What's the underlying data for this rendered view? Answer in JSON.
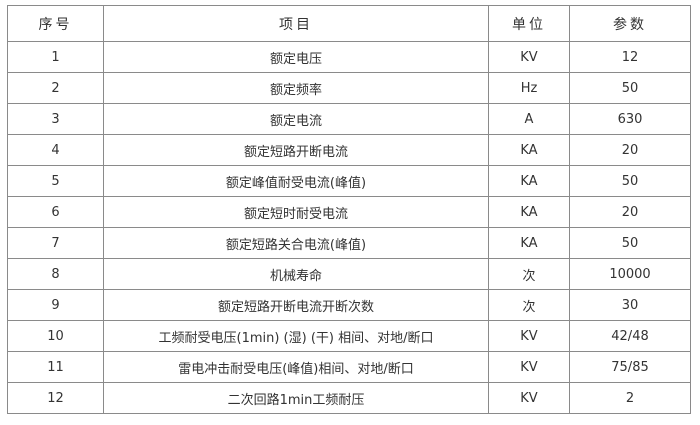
{
  "headers": [
    "序号",
    "项目",
    "单位",
    "参数"
  ],
  "rows": [
    [
      "1",
      "额定电压",
      "KV",
      "12"
    ],
    [
      "2",
      "额定频率",
      "Hz",
      "50"
    ],
    [
      "3",
      "额定电流",
      "A",
      "630"
    ],
    [
      "4",
      "额定短路开断电流",
      "KA",
      "20"
    ],
    [
      "5",
      "额定峰值耐受电流(峰值)",
      "KA",
      "50"
    ],
    [
      "6",
      "额定短时耐受电流",
      "KA",
      "20"
    ],
    [
      "7",
      "额定短路关合电流(峰值)",
      "KA",
      "50"
    ],
    [
      "8",
      "机械寿命",
      "次",
      "10000"
    ],
    [
      "9",
      "额定短路开断电流开断次数",
      "次",
      "30"
    ],
    [
      "10",
      "工频耐受电压(1min) (湿) (干) 相间、对地/断口",
      "KV",
      "42/48"
    ],
    [
      "11",
      "雷电冲击耐受电压(峰值)相间、对地/断口",
      "KV",
      "75/85"
    ],
    [
      "12",
      "二次回路1min工频耐压",
      "KV",
      "2"
    ]
  ]
}
